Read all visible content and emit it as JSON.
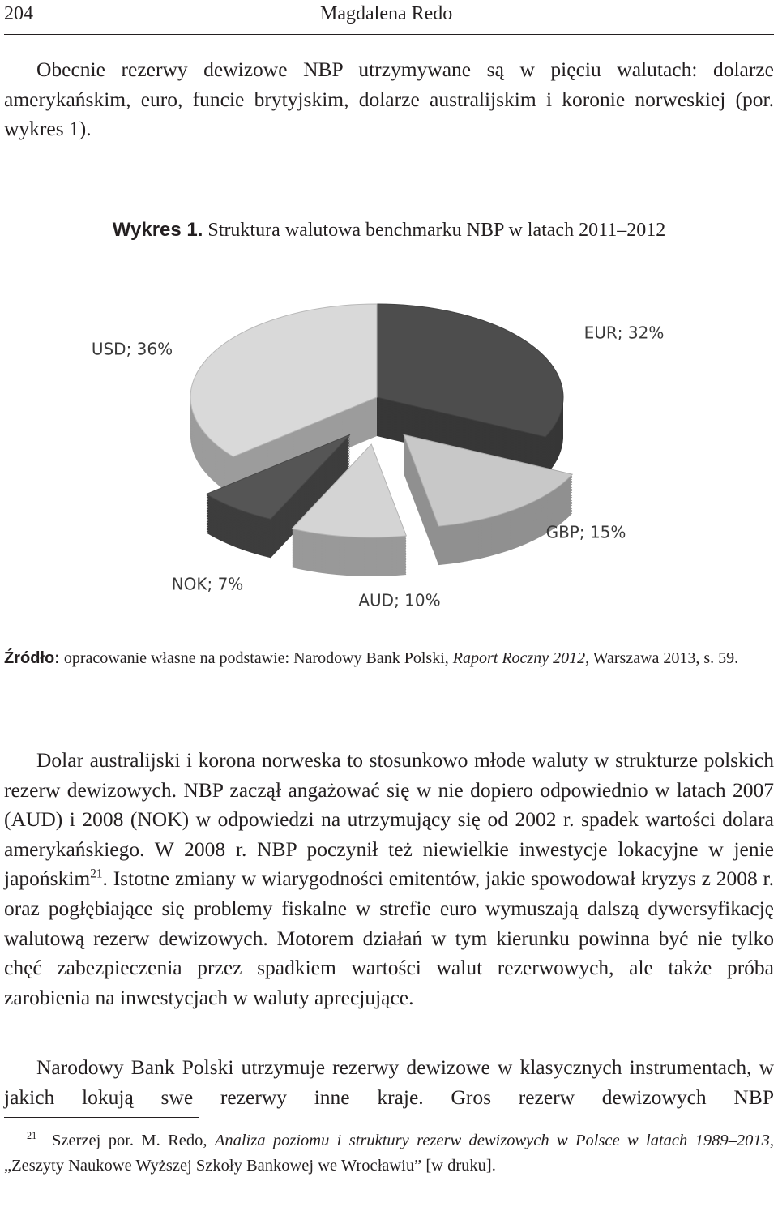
{
  "header": {
    "page_number": "204",
    "author": "Magdalena Redo"
  },
  "paragraph_1": "Obecnie rezerwy dewizowe NBP utrzymywane są w pięciu walutach: dolarze amerykańskim, euro, funcie brytyjskim, dolarze australijskim i koronie norweskiej (por. wykres 1).",
  "figure": {
    "label": "Wykres 1.",
    "title": "Struktura walutowa benchmarku NBP w latach 2011–2012",
    "source": {
      "lead": "Źródło:",
      "text": " opracowanie własne na podstawie: Narodowy Bank Polski, ",
      "italic": "Raport Roczny 2012",
      "tail": ", Warszawa 2013, s. 59."
    }
  },
  "chart_data": {
    "type": "pie",
    "values": [
      32,
      15,
      10,
      7,
      36
    ],
    "value_labels": [
      "EUR; 32%",
      "GBP; 15%",
      "AUD; 10%",
      "NOK; 7%",
      "USD; 36%"
    ],
    "colors": [
      "#4d4d4d",
      "#c8c8c8",
      "#d4d4d4",
      "#555555",
      "#d9d9d9"
    ],
    "exploded": [
      false,
      true,
      true,
      true,
      false
    ]
  },
  "paragraph_2": {
    "before": "Dolar australijski i korona norweska to stosunkowo młode waluty w strukturze polskich rezerw dewizowych. NBP zaczął angażować się w nie dopiero odpowiednio w latach 2007 (AUD) i 2008 (NOK) w odpowiedzi na utrzymujący się od 2002 r. spadek wartości dolara amerykańskiego. W 2008 r. NBP poczynił też niewielkie inwestycje lokacyjne w jenie japońskim",
    "footnote_ref": "21",
    "after": ". Istotne zmiany w wiarygodności emitentów, jakie spowodował kryzys z 2008 r. oraz pogłębiające się problemy fiskalne w strefie euro wymuszają dalszą dywersyfikację walutową rezerw dewizowych. Motorem działań w tym kierunku powinna być nie tylko chęć zabezpieczenia przez spadkiem wartości walut rezerwowych, ale także próba zarobienia na inwestycjach w waluty aprecjujące."
  },
  "paragraph_3": "Narodowy Bank Polski utrzymuje rezerwy dewizowe w klasycznych instrumentach, w jakich lokują swe rezerwy inne kraje. Gros rezerw dewizowych NBP",
  "footnote": {
    "number": "21",
    "text": "Szerzej por. M. Redo, ",
    "italic": "Analiza poziomu i struktury rezerw dewizowych w Polsce w latach 1989–2013",
    "tail": ", „Zeszyty Naukowe Wyższej Szkoły Bankowej we Wrocławiu” [w druku]."
  }
}
